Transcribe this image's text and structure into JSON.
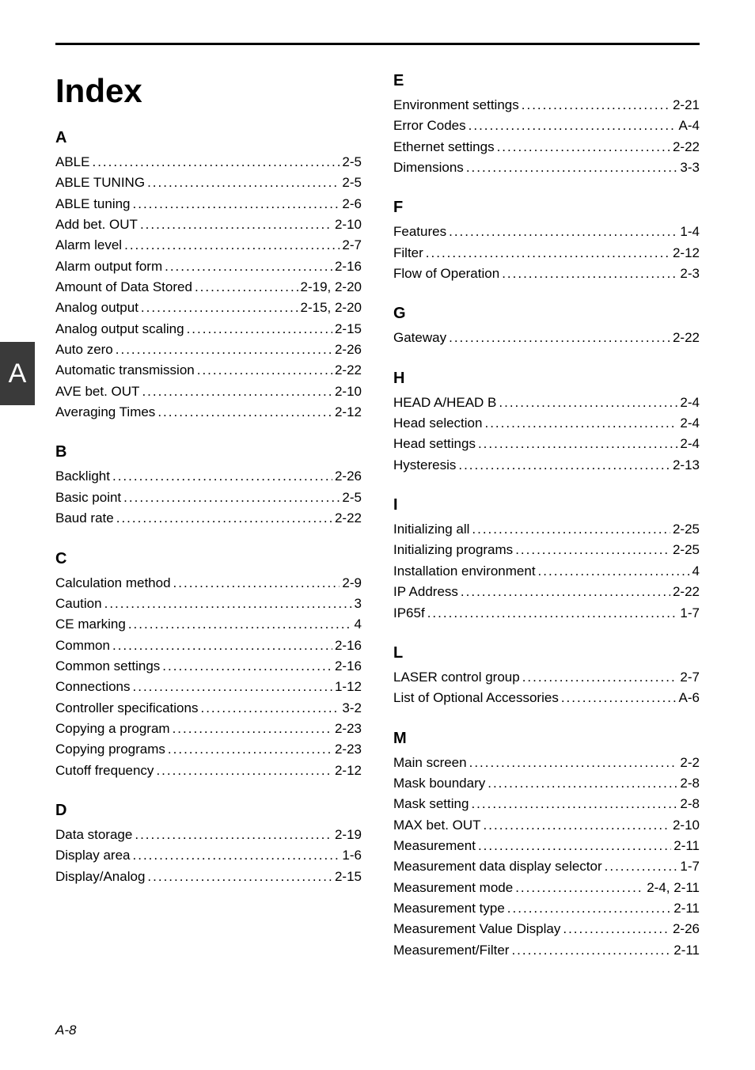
{
  "page": {
    "title": "Index",
    "side_tab": "A",
    "footer": "A-8"
  },
  "left": [
    {
      "head": "A",
      "items": [
        {
          "label": "ABLE",
          "page": "2-5"
        },
        {
          "label": "ABLE TUNING",
          "page": "2-5"
        },
        {
          "label": "ABLE tuning",
          "page": "2-6"
        },
        {
          "label": "Add bet. OUT",
          "page": "2-10"
        },
        {
          "label": "Alarm level",
          "page": "2-7"
        },
        {
          "label": "Alarm output form",
          "page": "2-16"
        },
        {
          "label": "Amount of Data Stored",
          "page": "2-19, 2-20"
        },
        {
          "label": "Analog output",
          "page": "2-15, 2-20"
        },
        {
          "label": "Analog output scaling",
          "page": "2-15"
        },
        {
          "label": "Auto zero",
          "page": "2-26"
        },
        {
          "label": "Automatic transmission",
          "page": "2-22"
        },
        {
          "label": "AVE bet. OUT",
          "page": "2-10"
        },
        {
          "label": "Averaging Times",
          "page": "2-12"
        }
      ]
    },
    {
      "head": "B",
      "items": [
        {
          "label": "Backlight",
          "page": "2-26"
        },
        {
          "label": "Basic point",
          "page": "2-5"
        },
        {
          "label": "Baud rate",
          "page": "2-22"
        }
      ]
    },
    {
      "head": "C",
      "items": [
        {
          "label": "Calculation method",
          "page": "2-9"
        },
        {
          "label": "Caution",
          "page": "3"
        },
        {
          "label": "CE marking",
          "page": "4"
        },
        {
          "label": "Common",
          "page": "2-16"
        },
        {
          "label": "Common settings",
          "page": "2-16"
        },
        {
          "label": "Connections",
          "page": "1-12"
        },
        {
          "label": "Controller specifications",
          "page": "3-2"
        },
        {
          "label": "Copying a program",
          "page": "2-23"
        },
        {
          "label": "Copying programs",
          "page": "2-23"
        },
        {
          "label": "Cutoff frequency",
          "page": "2-12"
        }
      ]
    },
    {
      "head": "D",
      "items": [
        {
          "label": "Data storage",
          "page": "2-19"
        },
        {
          "label": "Display area",
          "page": "1-6"
        },
        {
          "label": "Display/Analog",
          "page": "2-15"
        }
      ]
    }
  ],
  "right": [
    {
      "head": "E",
      "items": [
        {
          "label": "Environment settings",
          "page": "2-21"
        },
        {
          "label": "Error Codes",
          "page": "A-4"
        },
        {
          "label": "Ethernet settings",
          "page": "2-22"
        },
        {
          "label": "Dimensions",
          "page": "3-3"
        }
      ]
    },
    {
      "head": "F",
      "items": [
        {
          "label": "Features",
          "page": "1-4"
        },
        {
          "label": "Filter",
          "page": "2-12"
        },
        {
          "label": "Flow of Operation",
          "page": "2-3"
        }
      ]
    },
    {
      "head": "G",
      "items": [
        {
          "label": "Gateway",
          "page": "2-22"
        }
      ]
    },
    {
      "head": "H",
      "items": [
        {
          "label": "HEAD A/HEAD B",
          "page": "2-4"
        },
        {
          "label": "Head selection",
          "page": "2-4"
        },
        {
          "label": "Head settings",
          "page": "2-4"
        },
        {
          "label": "Hysteresis",
          "page": "2-13"
        }
      ]
    },
    {
      "head": "I",
      "items": [
        {
          "label": "Initializing all",
          "page": "2-25"
        },
        {
          "label": "Initializing programs",
          "page": "2-25"
        },
        {
          "label": "Installation environment",
          "page": "4"
        },
        {
          "label": "IP Address",
          "page": "2-22"
        },
        {
          "label": "IP65f",
          "page": "1-7"
        }
      ]
    },
    {
      "head": "L",
      "items": [
        {
          "label": "LASER control group",
          "page": "2-7"
        },
        {
          "label": "List of Optional Accessories",
          "page": "A-6"
        }
      ]
    },
    {
      "head": "M",
      "items": [
        {
          "label": "Main screen",
          "page": "2-2"
        },
        {
          "label": "Mask boundary",
          "page": "2-8"
        },
        {
          "label": "Mask setting",
          "page": "2-8"
        },
        {
          "label": "MAX bet. OUT",
          "page": "2-10"
        },
        {
          "label": "Measurement",
          "page": "2-11"
        },
        {
          "label": "Measurement data display selector",
          "page": "1-7"
        },
        {
          "label": "Measurement mode",
          "page": "2-4, 2-11"
        },
        {
          "label": "Measurement type",
          "page": "2-11"
        },
        {
          "label": "Measurement Value Display",
          "page": "2-26"
        },
        {
          "label": "Measurement/Filter",
          "page": "2-11"
        }
      ]
    }
  ]
}
